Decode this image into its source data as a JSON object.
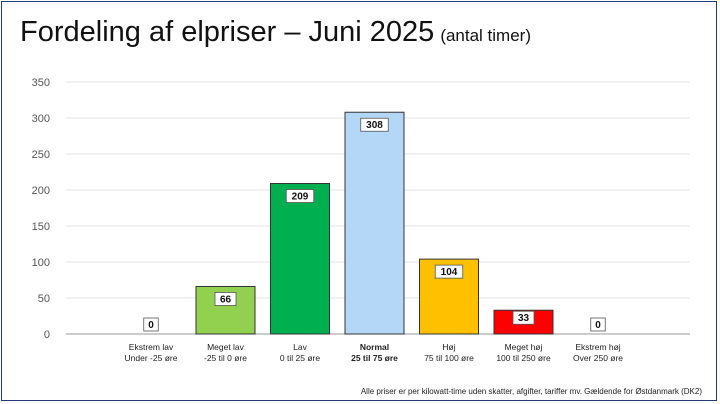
{
  "title": "Fordeling af elpriser – Juni 2025",
  "subtitle": "(antal timer)",
  "footnote": "Alle priser er per kilowatt-time uden skatter, afgifter, tariffer mv. Gældende for Østdanmark (DK2)",
  "colors": {
    "frame_border": "#1f3d7a",
    "gridline": "#e3e3e3",
    "axis": "#9a9a9a",
    "bar_stroke": "#333333"
  },
  "chart_data": {
    "type": "bar",
    "title": "Fordeling af elpriser – Juni 2025",
    "subtitle": "(antal timer)",
    "ylim": [
      0,
      350
    ],
    "yticks": [
      0,
      50,
      100,
      150,
      200,
      250,
      300,
      350
    ],
    "grid": true,
    "legend": "none",
    "categories": [
      {
        "name": "Ekstrem lav",
        "range": "Under -25 øre",
        "value": 0,
        "color": "#ffffff",
        "bold": false
      },
      {
        "name": "Meget lav",
        "range": "-25 til 0 øre",
        "value": 66,
        "color": "#92d050",
        "bold": false
      },
      {
        "name": "Lav",
        "range": "0 til 25 øre",
        "value": 209,
        "color": "#00b050",
        "bold": false
      },
      {
        "name": "Normal",
        "range": "25 til 75 øre",
        "value": 308,
        "color": "#b4d7f8",
        "bold": true
      },
      {
        "name": "Høj",
        "range": "75 til 100 øre",
        "value": 104,
        "color": "#ffc000",
        "bold": false
      },
      {
        "name": "Meget høj",
        "range": "100 til 250 øre",
        "value": 33,
        "color": "#ff0000",
        "bold": false
      },
      {
        "name": "Ekstrem høj",
        "range": "Over 250 øre",
        "value": 0,
        "color": "#ffffff",
        "bold": false
      }
    ]
  }
}
